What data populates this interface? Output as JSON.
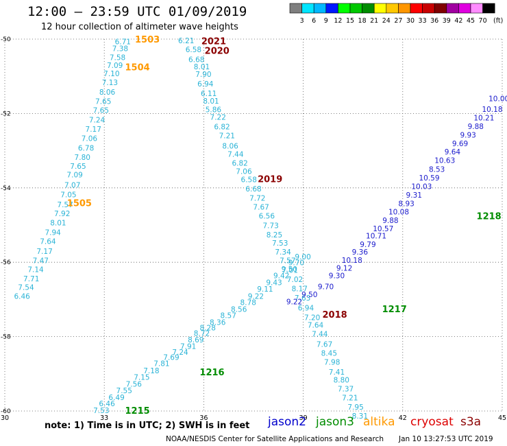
{
  "header": {
    "title": "12:00 — 23:59 UTC 01/09/2019",
    "subtitle": "12 hour collection of altimeter wave heights"
  },
  "colorbar": {
    "colors": [
      "#7f7f7f",
      "#00e5ff",
      "#00b8ff",
      "#0018ff",
      "#00ff00",
      "#00c800",
      "#008c00",
      "#ffff00",
      "#ffc800",
      "#ff9600",
      "#ff0000",
      "#c80000",
      "#7f0000",
      "#a000a0",
      "#e000e0",
      "#ff8cff",
      "#000000"
    ],
    "labels": [
      "3",
      "6",
      "9",
      "12",
      "15",
      "18",
      "21",
      "24",
      "27",
      "30",
      "33",
      "36",
      "39",
      "42",
      "45",
      "70",
      "(ft)"
    ]
  },
  "footer": {
    "note": "note: 1) Time is in UTC; 2) SWH is in feet",
    "credit": "NOAA/NESDIS Center for Satellite Applications and Research",
    "stamp": "Jan 10 13:27:53 UTC 2019"
  },
  "satellites": [
    {
      "name": "jason2",
      "color": "#0000cc"
    },
    {
      "name": "jason3",
      "color": "#008c00"
    },
    {
      "name": "altika",
      "color": "#ff9900"
    },
    {
      "name": "cryosat",
      "color": "#dd0000"
    },
    {
      "name": "s3a",
      "color": "#8b0000"
    }
  ],
  "chart_data": {
    "type": "scatter",
    "title": "12:00 — 23:59 UTC 01/09/2019",
    "subtitle": "12 hour collection of altimeter wave heights",
    "xlabel": "",
    "ylabel": "",
    "xlim": [
      30,
      45
    ],
    "ylim": [
      -60,
      -50
    ],
    "x_ticks": [
      "30",
      "33",
      "36",
      "39",
      "42",
      "45"
    ],
    "y_ticks": [
      "-50",
      "-52",
      "-54",
      "-56",
      "-58",
      "-60"
    ],
    "grid": true,
    "unit": "ft",
    "series": [
      {
        "name": "altika",
        "color": "#2ab3d6",
        "x": [
          33.56,
          33.48,
          33.4,
          33.32,
          33.22,
          33.17,
          33.09,
          32.97,
          32.9,
          32.78,
          32.67,
          32.55,
          32.45,
          32.34,
          32.21,
          32.11,
          32.04,
          31.92,
          31.82,
          31.73,
          31.61,
          31.45,
          31.3,
          31.2,
          31.08,
          30.93,
          30.8,
          30.64,
          30.52
        ],
        "y": [
          -50.06,
          -50.25,
          -50.49,
          -50.7,
          -50.92,
          -51.16,
          -51.42,
          -51.67,
          -51.91,
          -52.17,
          -52.42,
          -52.67,
          -52.92,
          -53.17,
          -53.41,
          -53.64,
          -53.92,
          -54.18,
          -54.45,
          -54.69,
          -54.94,
          -55.19,
          -55.43,
          -55.7,
          -55.95,
          -56.19,
          -56.44,
          -56.67,
          -56.91
        ],
        "values": [
          6.71,
          7.38,
          7.58,
          7.09,
          7.1,
          7.13,
          8.06,
          7.65,
          7.65,
          7.24,
          7.17,
          7.06,
          6.78,
          7.8,
          7.65,
          7.09,
          7.07,
          7.05,
          7.57,
          7.92,
          8.01,
          7.94,
          7.64,
          7.17,
          7.47,
          7.14,
          7.71,
          7.54,
          6.46
        ]
      },
      {
        "name": "s3a",
        "color": "#2ab3d6",
        "x": [
          35.47,
          35.69,
          35.78,
          35.94,
          35.99,
          36.05,
          36.15,
          36.22,
          36.29,
          36.43,
          36.55,
          36.7,
          36.8,
          36.96,
          37.09,
          37.21,
          37.36,
          37.5,
          37.62,
          37.73,
          37.9,
          38.02,
          38.13,
          38.3,
          38.39,
          38.53,
          38.6,
          38.75,
          38.89,
          38.98,
          39.08,
          39.27,
          39.37,
          39.5,
          39.64,
          39.78,
          39.87,
          40.01,
          40.15,
          40.28,
          40.41,
          40.58,
          40.71
        ],
        "y": [
          -50.04,
          -50.28,
          -50.54,
          -50.74,
          -50.94,
          -51.2,
          -51.46,
          -51.66,
          -51.89,
          -52.09,
          -52.35,
          -52.59,
          -52.87,
          -53.09,
          -53.33,
          -53.55,
          -53.77,
          -54.02,
          -54.27,
          -54.51,
          -54.75,
          -55.01,
          -55.26,
          -55.48,
          -55.72,
          -55.95,
          -56.21,
          -56.46,
          -56.71,
          -56.96,
          -57.22,
          -57.48,
          -57.68,
          -57.92,
          -58.2,
          -58.44,
          -58.68,
          -58.95,
          -59.16,
          -59.4,
          -59.64,
          -59.89,
          -60.13
        ],
        "values": [
          6.21,
          6.58,
          6.68,
          8.01,
          7.9,
          6.94,
          6.11,
          8.01,
          5.86,
          7.22,
          6.82,
          7.21,
          8.06,
          7.44,
          6.82,
          7.06,
          6.58,
          6.68,
          7.72,
          7.67,
          6.56,
          7.73,
          8.25,
          7.53,
          7.34,
          7.57,
          7.01,
          7.02,
          8.17,
          7.63,
          6.94,
          7.2,
          7.64,
          7.44,
          7.67,
          8.45,
          7.98,
          7.41,
          8.8,
          7.37,
          7.21,
          7.95,
          8.31
        ]
      },
      {
        "name": "jason3",
        "color": "#2ab3d6",
        "x": [
          32.91,
          33.08,
          33.37,
          33.6,
          33.89,
          34.13,
          34.42,
          34.73,
          35.02,
          35.29,
          35.53,
          35.76,
          35.94,
          36.12,
          36.42,
          36.74,
          37.06,
          37.34,
          37.57,
          37.85,
          38.12,
          38.34,
          38.58,
          38.79,
          38.99
        ],
        "y": [
          -59.98,
          -59.8,
          -59.63,
          -59.45,
          -59.27,
          -59.09,
          -58.91,
          -58.72,
          -58.55,
          -58.41,
          -58.26,
          -58.08,
          -57.91,
          -57.76,
          -57.61,
          -57.43,
          -57.26,
          -57.08,
          -56.91,
          -56.72,
          -56.54,
          -56.36,
          -56.18,
          -56.01,
          -55.85
        ],
        "values": [
          7.53,
          6.46,
          6.49,
          7.55,
          7.56,
          7.15,
          7.18,
          7.81,
          7.69,
          7.24,
          7.91,
          8.69,
          8.72,
          8.28,
          8.36,
          8.57,
          8.56,
          8.78,
          9.22,
          9.11,
          9.43,
          9.42,
          9.5,
          9.7,
          9.0
        ]
      },
      {
        "name": "jason2",
        "color": "#1a1acc",
        "x": [
          38.73,
          39.19,
          39.68,
          40.01,
          40.24,
          40.47,
          40.71,
          40.95,
          41.2,
          41.41,
          41.63,
          41.88,
          42.11,
          42.34,
          42.57,
          42.8,
          43.03,
          43.27,
          43.5,
          43.73,
          43.97,
          44.2,
          44.45,
          44.7,
          44.9
        ],
        "y": [
          -57.06,
          -56.86,
          -56.65,
          -56.36,
          -56.15,
          -55.94,
          -55.72,
          -55.52,
          -55.29,
          -55.09,
          -54.87,
          -54.64,
          -54.42,
          -54.19,
          -53.96,
          -53.73,
          -53.5,
          -53.26,
          -53.03,
          -52.8,
          -52.57,
          -52.34,
          -52.11,
          -51.88,
          -51.6
        ],
        "values": [
          9.22,
          9.5,
          9.7,
          9.3,
          9.12,
          10.18,
          9.36,
          9.79,
          10.71,
          10.57,
          9.88,
          10.08,
          8.93,
          9.31,
          10.03,
          10.59,
          8.53,
          10.63,
          9.64,
          9.69,
          9.93,
          9.88,
          10.21,
          10.18,
          10.0
        ]
      }
    ],
    "pass_labels": [
      {
        "text": "1503",
        "x": 34.3,
        "y": -50.0,
        "color": "#ff9900"
      },
      {
        "text": "1504",
        "x": 34.0,
        "y": -50.75,
        "color": "#ff9900"
      },
      {
        "text": "1505",
        "x": 32.25,
        "y": -54.4,
        "color": "#ff9900"
      },
      {
        "text": "2021",
        "x": 36.3,
        "y": -50.05,
        "color": "#8b0000"
      },
      {
        "text": "2020",
        "x": 36.4,
        "y": -50.3,
        "color": "#8b0000"
      },
      {
        "text": "2019",
        "x": 38.0,
        "y": -53.75,
        "color": "#8b0000"
      },
      {
        "text": "2018",
        "x": 39.95,
        "y": -57.4,
        "color": "#8b0000"
      },
      {
        "text": "1217",
        "x": 41.75,
        "y": -57.25,
        "color": "#008c00"
      },
      {
        "text": "1216",
        "x": 36.25,
        "y": -58.95,
        "color": "#008c00"
      },
      {
        "text": "1215",
        "x": 34.0,
        "y": -59.98,
        "color": "#008c00"
      },
      {
        "text": "1218",
        "x": 44.6,
        "y": -54.75,
        "color": "#008c00"
      }
    ]
  }
}
